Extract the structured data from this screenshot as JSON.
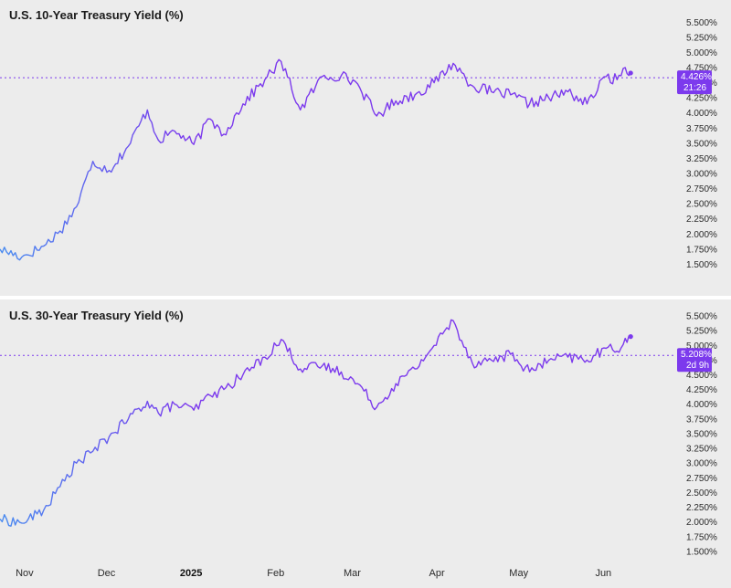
{
  "chart_data": [
    {
      "type": "line",
      "title": "U.S. 10-Year Treasury Yield (%)",
      "ylim": [
        1.25,
        5.625
      ],
      "yticks": [
        "5.500%",
        "5.250%",
        "5.000%",
        "4.750%",
        "4.500%",
        "4.250%",
        "4.000%",
        "3.750%",
        "3.500%",
        "3.250%",
        "3.000%",
        "2.750%",
        "2.500%",
        "2.250%",
        "2.000%",
        "1.750%",
        "1.500%"
      ],
      "reference_line": 4.583,
      "badge_value": "4.426%",
      "badge_sub": "21:26",
      "color_start": "#4a8cf0",
      "color_end": "#7c3aed",
      "grid": false,
      "x": [
        "2024-10-23",
        "2024-10-31",
        "2024-11-08",
        "2024-11-14",
        "2024-11-20",
        "2024-11-26",
        "2024-12-02",
        "2024-12-09",
        "2024-12-16",
        "2024-12-20",
        "2024-12-26",
        "2025-01-02",
        "2025-01-08",
        "2025-01-13",
        "2025-01-20",
        "2025-01-28",
        "2025-02-03",
        "2025-02-10",
        "2025-02-18",
        "2025-02-25",
        "2025-03-03",
        "2025-03-10",
        "2025-03-17",
        "2025-03-24",
        "2025-03-31",
        "2025-04-07",
        "2025-04-14",
        "2025-04-21",
        "2025-04-28",
        "2025-05-05",
        "2025-05-12",
        "2025-05-19",
        "2025-05-26",
        "2025-06-02",
        "2025-06-06",
        "2025-06-09",
        "2025-06-11"
      ],
      "values": [
        1.75,
        1.62,
        1.8,
        2.05,
        2.45,
        3.2,
        3.05,
        3.45,
        4.05,
        3.55,
        3.7,
        3.48,
        3.9,
        3.65,
        4.15,
        4.55,
        4.85,
        4.05,
        4.6,
        4.62,
        4.48,
        3.95,
        4.2,
        4.3,
        4.5,
        4.82,
        4.45,
        4.35,
        4.3,
        4.15,
        4.25,
        4.35,
        4.15,
        4.6,
        4.55,
        4.75,
        4.66
      ]
    },
    {
      "type": "line",
      "title": "U.S. 30-Year Treasury Yield (%)",
      "ylim": [
        1.25,
        5.625
      ],
      "yticks": [
        "5.500%",
        "5.250%",
        "5.000%",
        "4.750%",
        "4.500%",
        "4.250%",
        "4.000%",
        "3.750%",
        "3.500%",
        "3.250%",
        "3.000%",
        "2.750%",
        "2.500%",
        "2.250%",
        "2.000%",
        "1.750%",
        "1.500%"
      ],
      "reference_line": 4.83,
      "badge_value": "5.208%",
      "badge_sub": "2d 9h",
      "color_start": "#4a8cf0",
      "color_end": "#7c3aed",
      "grid": false,
      "x": [
        "2024-10-23",
        "2024-10-31",
        "2024-11-08",
        "2024-11-14",
        "2024-11-20",
        "2024-11-26",
        "2024-12-02",
        "2024-12-09",
        "2024-12-16",
        "2024-12-20",
        "2024-12-26",
        "2025-01-02",
        "2025-01-08",
        "2025-01-13",
        "2025-01-20",
        "2025-01-28",
        "2025-02-03",
        "2025-02-10",
        "2025-02-18",
        "2025-02-25",
        "2025-03-03",
        "2025-03-10",
        "2025-03-17",
        "2025-03-24",
        "2025-03-31",
        "2025-04-07",
        "2025-04-14",
        "2025-04-21",
        "2025-04-28",
        "2025-05-05",
        "2025-05-12",
        "2025-05-19",
        "2025-05-26",
        "2025-06-02",
        "2025-06-06",
        "2025-06-09",
        "2025-06-11"
      ],
      "values": [
        2.05,
        1.98,
        2.2,
        2.6,
        3.0,
        3.2,
        3.45,
        3.75,
        4.05,
        3.85,
        4.0,
        3.9,
        4.15,
        4.25,
        4.5,
        4.8,
        5.1,
        4.6,
        4.65,
        4.55,
        4.35,
        3.95,
        4.35,
        4.6,
        5.0,
        5.42,
        4.7,
        4.75,
        4.85,
        4.55,
        4.75,
        4.8,
        4.75,
        4.95,
        4.9,
        5.12,
        5.15
      ]
    }
  ],
  "x_axis": {
    "labels": [
      {
        "text": "Nov",
        "date": "2024-11-01",
        "bold": false
      },
      {
        "text": "Dec",
        "date": "2024-12-01",
        "bold": false
      },
      {
        "text": "2025",
        "date": "2025-01-01",
        "bold": true
      },
      {
        "text": "Feb",
        "date": "2025-02-01",
        "bold": false
      },
      {
        "text": "Mar",
        "date": "2025-03-01",
        "bold": false
      },
      {
        "text": "Apr",
        "date": "2025-04-01",
        "bold": false
      },
      {
        "text": "May",
        "date": "2025-05-01",
        "bold": false
      },
      {
        "text": "Jun",
        "date": "2025-06-01",
        "bold": false
      }
    ],
    "start": "2024-10-23",
    "end": "2025-06-27"
  },
  "colors": {
    "background": "#ececec",
    "divider": "#ffffff",
    "badge": "#7c3aed",
    "reference_line": "#7c3aed"
  }
}
